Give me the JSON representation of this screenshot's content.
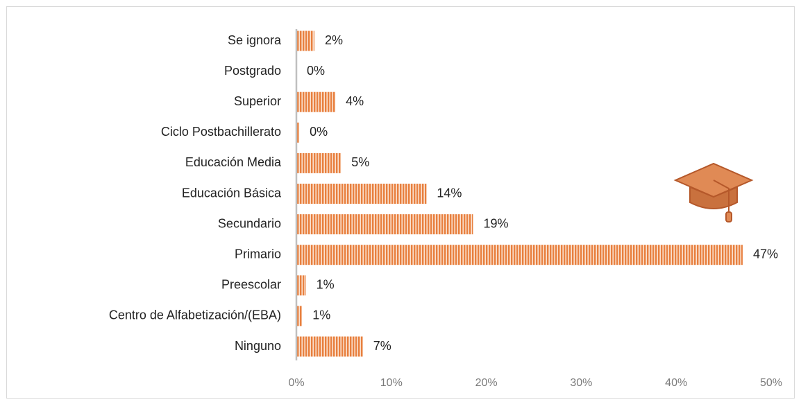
{
  "chart_data": {
    "type": "hbar",
    "categories": [
      "Se ignora",
      "Postgrado",
      "Superior",
      "Ciclo Postbachillerato",
      "Educación Media",
      "Educación Básica",
      "Secundario",
      "Primario",
      "Preescolar",
      "Centro de Alfabetización/(EBA)",
      "Ninguno"
    ],
    "values": [
      1.9,
      0,
      4.1,
      0.3,
      4.7,
      13.7,
      18.6,
      47,
      1,
      0.6,
      7
    ],
    "value_labels": [
      "2%",
      "0%",
      "4%",
      "0%",
      "5%",
      "14%",
      "19%",
      "47%",
      "1%",
      "1%",
      "7%"
    ],
    "color": "#e8803f",
    "xlim": [
      0,
      50
    ],
    "xticks": [
      {
        "value": 0,
        "label": "0%"
      },
      {
        "value": 10,
        "label": "10%"
      },
      {
        "value": 20,
        "label": "20%"
      },
      {
        "value": 30,
        "label": "30%"
      },
      {
        "value": 40,
        "label": "40%"
      },
      {
        "value": 50,
        "label": "50%"
      }
    ]
  }
}
